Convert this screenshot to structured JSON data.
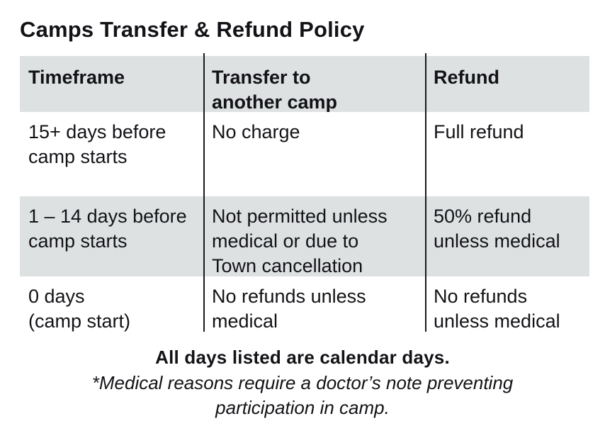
{
  "title": "Camps Transfer & Refund Policy",
  "table": {
    "headers": [
      "Timeframe",
      "Transfer to\nanother camp",
      "Refund"
    ],
    "rows": [
      {
        "cells": [
          "15+ days before\ncamp starts",
          "No charge",
          "Full refund"
        ]
      },
      {
        "cells": [
          "1 – 14 days before\ncamp starts",
          "Not permitted unless\nmedical or due to\nTown cancellation",
          "50% refund\nunless medical"
        ]
      },
      {
        "cells": [
          "0 days\n(camp start)",
          "No refunds unless\nmedical",
          "No refunds\nunless medical"
        ]
      }
    ]
  },
  "notes": {
    "calendar": "All days listed are calendar days.",
    "medical": "*Medical reasons require a doctor’s note preventing\nparticipation in camp."
  },
  "colors": {
    "row_shade": "#dee1e2",
    "text": "#131317",
    "divider": "#1a1a1a",
    "background": "#ffffff"
  }
}
